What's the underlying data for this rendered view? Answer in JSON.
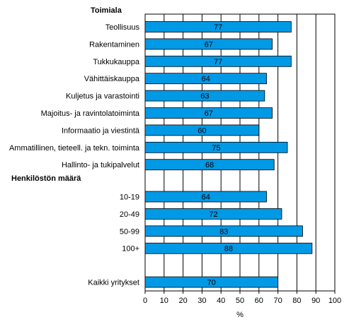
{
  "chart_data": {
    "type": "bar",
    "orientation": "horizontal",
    "xlabel": "%",
    "xlim": [
      0,
      100
    ],
    "xticks": [
      0,
      10,
      20,
      30,
      40,
      50,
      60,
      70,
      80,
      90,
      100
    ],
    "grid": "vertical",
    "bar_color": "#0099e6",
    "groups": [
      {
        "heading": "Toimiala",
        "categories": [
          "Teollisuus",
          "Rakentaminen",
          "Tukkukauppa",
          "Vähittäiskauppa",
          "Kuljetus ja varastointi",
          "Majoitus- ja ravintolatoiminta",
          "Informaatio ja viestintä",
          "Ammatillinen, tieteell. ja tekn. toiminta",
          "Hallinto- ja tukipalvelut"
        ],
        "values": [
          77,
          67,
          77,
          64,
          63,
          67,
          60,
          75,
          68
        ]
      },
      {
        "heading": "Henkilöstön määrä",
        "categories": [
          "10-19",
          "20-49",
          "50-99",
          "100+"
        ],
        "values": [
          64,
          72,
          83,
          88
        ]
      },
      {
        "heading": "",
        "categories": [
          "Kaikki yritykset"
        ],
        "values": [
          70
        ]
      }
    ]
  }
}
